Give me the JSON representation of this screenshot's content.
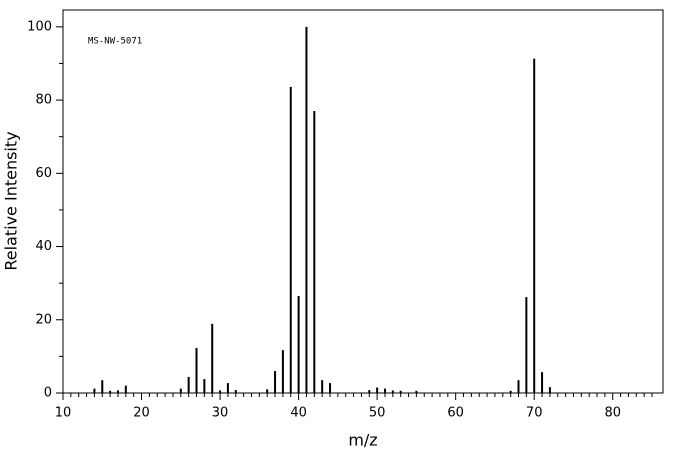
{
  "chart_data": {
    "type": "stem",
    "annotation": "MS-NW-5071",
    "xlabel": "m/z",
    "ylabel": "Relative Intensity",
    "color": "#000000",
    "x": [
      14,
      15,
      16,
      17,
      18,
      25,
      26,
      27,
      28,
      29,
      30,
      31,
      32,
      36,
      37,
      38,
      39,
      40,
      41,
      42,
      43,
      44,
      49,
      50,
      51,
      52,
      53,
      55,
      67,
      68,
      69,
      70,
      71,
      72
    ],
    "values": [
      1.2,
      3.5,
      0.6,
      0.7,
      2.0,
      1.2,
      4.4,
      12.3,
      3.8,
      18.9,
      0.7,
      2.7,
      0.8,
      1.0,
      6.0,
      11.7,
      83.6,
      26.5,
      100,
      77.0,
      3.5,
      2.7,
      0.8,
      1.5,
      1.2,
      0.7,
      0.6,
      0.6,
      0.6,
      3.5,
      26.2,
      91.3,
      5.7,
      1.6
    ],
    "xlim": [
      10,
      86.4
    ],
    "ylim": [
      0,
      104.6
    ],
    "xticks": [
      10,
      20,
      30,
      40,
      50,
      60,
      70,
      80
    ],
    "yticks": [
      0,
      20,
      40,
      60,
      80,
      100
    ],
    "xminorticks": [
      11,
      12,
      13,
      14,
      15,
      16,
      17,
      18,
      19,
      21,
      22,
      23,
      24,
      25,
      26,
      27,
      28,
      29,
      31,
      32,
      33,
      34,
      35,
      36,
      37,
      38,
      39,
      41,
      42,
      43,
      44,
      45,
      46,
      47,
      48,
      49,
      51,
      52,
      53,
      54,
      55,
      56,
      57,
      58,
      59,
      61,
      62,
      63,
      64,
      65,
      66,
      67,
      68,
      69,
      71,
      72,
      73,
      74,
      75,
      76,
      77,
      78,
      79,
      81,
      82,
      83,
      84,
      85
    ],
    "yminorticks": [
      10,
      30,
      50,
      70,
      90
    ]
  }
}
